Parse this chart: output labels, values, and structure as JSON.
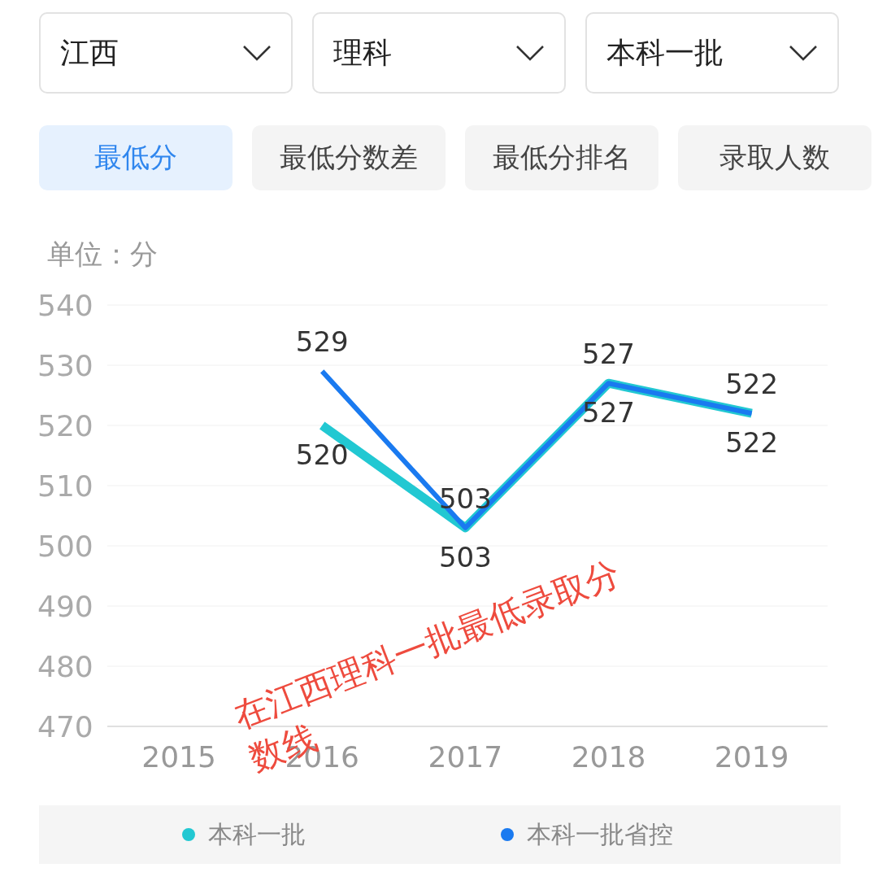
{
  "chart_data": {
    "type": "line",
    "ylabel": "单位：分",
    "annotations": [
      "江西",
      "理科",
      "本科一批",
      "最低分",
      "最低分数差",
      "最低分排名",
      "录取人数",
      "在江西理科一批最低录取分数线"
    ],
    "categories": [
      "2015",
      "2016",
      "2017",
      "2018",
      "2019"
    ],
    "series": [
      {
        "name": "本科一批",
        "color": "#22c8d2",
        "values": [
          null,
          520,
          503,
          527,
          522
        ]
      },
      {
        "name": "本科一批省控",
        "color": "#1a7af0",
        "values": [
          null,
          529,
          503,
          527,
          522
        ]
      }
    ],
    "ylim": [
      470,
      540
    ],
    "yticks": [
      470,
      480,
      490,
      500,
      510,
      520,
      530,
      540
    ],
    "grid": "y",
    "legend": "bottom",
    "data_labels": true,
    "marker": "none",
    "line_style": "solid"
  }
}
